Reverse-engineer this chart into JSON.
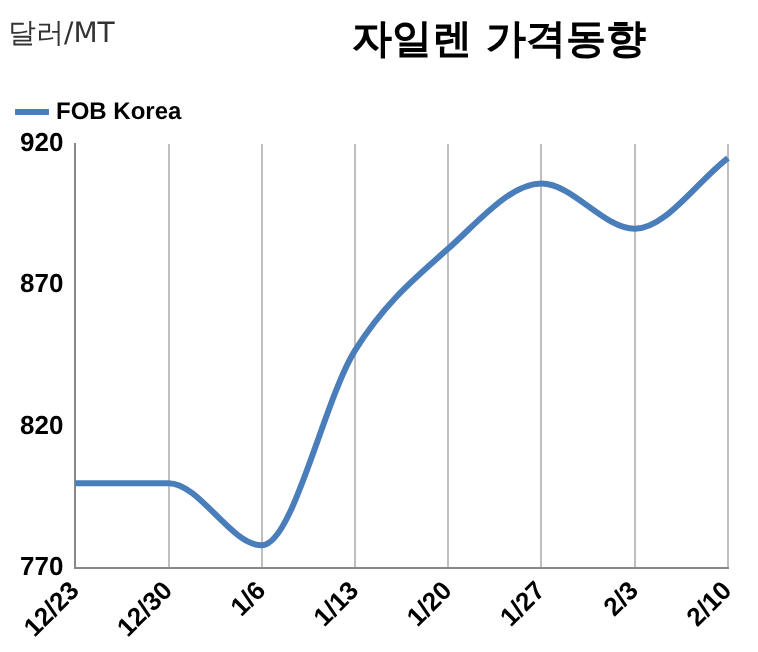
{
  "chart_data": {
    "type": "line",
    "title": "자일렌 가격동향",
    "ylabel": "달러/MT",
    "categories": [
      "12/23",
      "12/30",
      "1/6",
      "1/13",
      "1/20",
      "1/27",
      "2/3",
      "2/10"
    ],
    "series": [
      {
        "name": "FOB Korea",
        "color": "#4a7ebb",
        "values": [
          800,
          800,
          778,
          847,
          883,
          906,
          890,
          915
        ]
      }
    ],
    "ylim": [
      770,
      920
    ],
    "yticks": [
      770,
      820,
      870,
      920
    ],
    "grid": "x",
    "legend": "top left",
    "marker": "none",
    "line_style": "solid"
  }
}
